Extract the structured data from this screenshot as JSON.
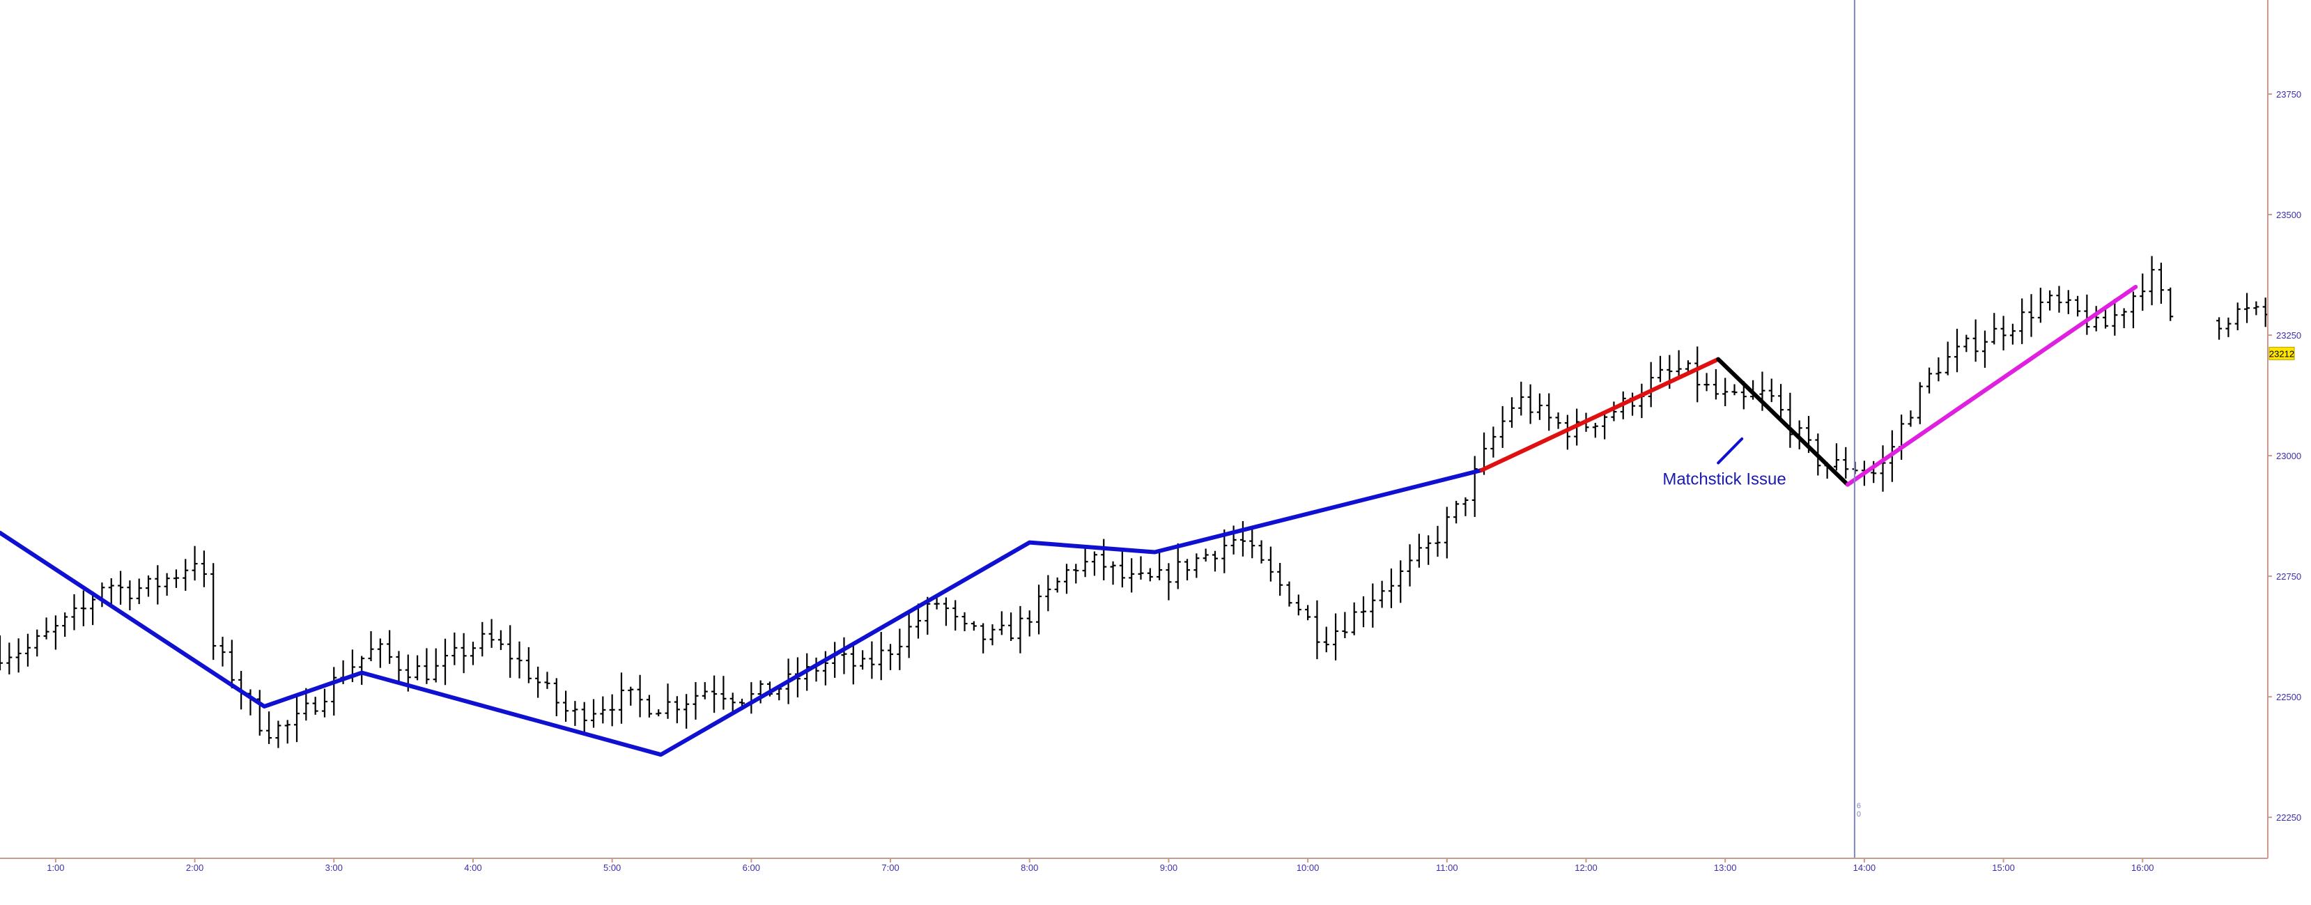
{
  "colors": {
    "background": "#ffffff",
    "bars": "#000000",
    "axis": "#c89b8c",
    "axis_text": "#3a2fb0",
    "cursor_line": "#7f86c6",
    "wave_blue": "#1010d0",
    "wave_red": "#e01010",
    "wave_black": "#000000",
    "wave_magenta": "#e020e0",
    "annotation": "#1a1ab0",
    "price_tag_bg": "#ffe600",
    "price_tag_border": "#b89b00"
  },
  "chart_data": {
    "type": "ohlc",
    "grid": false,
    "x_unit": "hours (time of day)",
    "xlim": [
      0.6,
      16.9
    ],
    "ylim": [
      22165,
      23945
    ],
    "x_ticks": [
      {
        "x": 1,
        "label": "1:00"
      },
      {
        "x": 2,
        "label": "2:00"
      },
      {
        "x": 3,
        "label": "3:00"
      },
      {
        "x": 4,
        "label": "4:00"
      },
      {
        "x": 5,
        "label": "5:00"
      },
      {
        "x": 6,
        "label": "6:00"
      },
      {
        "x": 7,
        "label": "7:00"
      },
      {
        "x": 8,
        "label": "8:00"
      },
      {
        "x": 9,
        "label": "9:00"
      },
      {
        "x": 10,
        "label": "10:00"
      },
      {
        "x": 11,
        "label": "11:00"
      },
      {
        "x": 12,
        "label": "12:00"
      },
      {
        "x": 13,
        "label": "13:00"
      },
      {
        "x": 14,
        "label": "14:00"
      },
      {
        "x": 15,
        "label": "15:00"
      },
      {
        "x": 16,
        "label": "16:00"
      }
    ],
    "y_ticks": [
      {
        "y": 22250,
        "label": "22250"
      },
      {
        "y": 22500,
        "label": "22500"
      },
      {
        "y": 22750,
        "label": "22750"
      },
      {
        "y": 23000,
        "label": "23000"
      },
      {
        "y": 23250,
        "label": "23250"
      },
      {
        "y": 23500,
        "label": "23500"
      },
      {
        "y": 23750,
        "label": "23750"
      }
    ],
    "last_price": {
      "value": 23212,
      "label": "23212"
    },
    "cursor": {
      "x": 13.93,
      "label": "6\n0"
    },
    "price_path": [
      [
        0.6,
        22590
      ],
      [
        0.8,
        22600
      ],
      [
        1.0,
        22640
      ],
      [
        1.2,
        22680
      ],
      [
        1.35,
        22740
      ],
      [
        1.5,
        22720
      ],
      [
        1.7,
        22730
      ],
      [
        1.9,
        22760
      ],
      [
        2.05,
        22800
      ],
      [
        2.1,
        22620
      ],
      [
        2.3,
        22530
      ],
      [
        2.5,
        22430
      ],
      [
        2.7,
        22440
      ],
      [
        2.9,
        22500
      ],
      [
        3.1,
        22560
      ],
      [
        3.3,
        22600
      ],
      [
        3.5,
        22560
      ],
      [
        3.7,
        22550
      ],
      [
        3.9,
        22590
      ],
      [
        4.1,
        22620
      ],
      [
        4.3,
        22580
      ],
      [
        4.5,
        22520
      ],
      [
        4.7,
        22460
      ],
      [
        4.9,
        22480
      ],
      [
        5.1,
        22500
      ],
      [
        5.3,
        22480
      ],
      [
        5.5,
        22490
      ],
      [
        5.7,
        22520
      ],
      [
        5.9,
        22500
      ],
      [
        6.0,
        22500
      ],
      [
        6.2,
        22520
      ],
      [
        6.4,
        22550
      ],
      [
        6.6,
        22580
      ],
      [
        6.8,
        22560
      ],
      [
        7.0,
        22600
      ],
      [
        7.2,
        22660
      ],
      [
        7.35,
        22700
      ],
      [
        7.5,
        22640
      ],
      [
        7.7,
        22620
      ],
      [
        7.9,
        22640
      ],
      [
        8.1,
        22700
      ],
      [
        8.3,
        22770
      ],
      [
        8.5,
        22780
      ],
      [
        8.7,
        22740
      ],
      [
        8.9,
        22740
      ],
      [
        9.1,
        22770
      ],
      [
        9.3,
        22800
      ],
      [
        9.5,
        22830
      ],
      [
        9.7,
        22760
      ],
      [
        9.9,
        22700
      ],
      [
        10.1,
        22620
      ],
      [
        10.3,
        22660
      ],
      [
        10.5,
        22720
      ],
      [
        10.7,
        22760
      ],
      [
        10.9,
        22820
      ],
      [
        11.1,
        22900
      ],
      [
        11.3,
        23020
      ],
      [
        11.5,
        23120
      ],
      [
        11.7,
        23080
      ],
      [
        11.9,
        23050
      ],
      [
        12.1,
        23080
      ],
      [
        12.3,
        23110
      ],
      [
        12.5,
        23160
      ],
      [
        12.7,
        23180
      ],
      [
        12.9,
        23130
      ],
      [
        13.1,
        23110
      ],
      [
        13.3,
        23130
      ],
      [
        13.5,
        23050
      ],
      [
        13.7,
        22980
      ],
      [
        13.9,
        22980
      ],
      [
        14.1,
        22960
      ],
      [
        14.3,
        23080
      ],
      [
        14.5,
        23180
      ],
      [
        14.7,
        23220
      ],
      [
        14.9,
        23250
      ],
      [
        15.1,
        23280
      ],
      [
        15.3,
        23320
      ],
      [
        15.5,
        23300
      ],
      [
        15.7,
        23260
      ],
      [
        15.9,
        23320
      ],
      [
        16.05,
        23380
      ],
      [
        16.25,
        23260
      ]
    ],
    "price_path_tail": [
      [
        16.55,
        23280
      ],
      [
        16.7,
        23300
      ],
      [
        16.9,
        23290
      ]
    ],
    "wave_lines": [
      {
        "color_key": "wave_blue",
        "points": [
          [
            0.6,
            22840
          ],
          [
            2.5,
            22480
          ],
          [
            3.2,
            22550
          ],
          [
            5.35,
            22380
          ],
          [
            8.0,
            22820
          ],
          [
            8.9,
            22800
          ],
          [
            11.25,
            22970
          ]
        ]
      },
      {
        "color_key": "wave_red",
        "points": [
          [
            11.25,
            22970
          ],
          [
            12.95,
            23200
          ]
        ]
      },
      {
        "color_key": "wave_black",
        "points": [
          [
            12.95,
            23200
          ],
          [
            13.88,
            22940
          ]
        ]
      },
      {
        "color_key": "wave_magenta",
        "points": [
          [
            13.88,
            22940
          ],
          [
            15.95,
            23350
          ]
        ]
      }
    ],
    "annotation": {
      "text": "Matchstick Issue",
      "x": 12.55,
      "y": 22940,
      "pointer": [
        [
          12.95,
          22985
        ],
        [
          13.12,
          23035
        ]
      ]
    }
  }
}
